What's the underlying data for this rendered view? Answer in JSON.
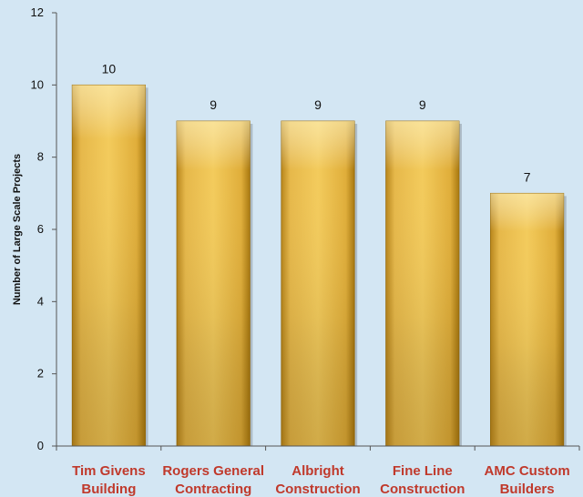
{
  "chart_data": {
    "type": "bar",
    "categories": [
      [
        "Tim Givens",
        "Building"
      ],
      [
        "Rogers General",
        "Contracting"
      ],
      [
        "Albright",
        "Construction"
      ],
      [
        "Fine Line",
        "Construction"
      ],
      [
        "AMC Custom",
        "Builders"
      ]
    ],
    "values": [
      10,
      9,
      9,
      9,
      7
    ],
    "data_labels": [
      "10",
      "9",
      "9",
      "9",
      "7"
    ],
    "ylabel": "Number of Large Scale Projects",
    "xlabel": "",
    "title": "",
    "ylim": [
      0,
      12
    ],
    "yticks": [
      0,
      2,
      4,
      6,
      8,
      10,
      12
    ],
    "grid": false,
    "legend": "none",
    "colors": {
      "background": "#d3e6f3",
      "bar_light": "#f8d266",
      "bar_mid": "#e0ae3a",
      "bar_dark": "#b8861c",
      "category_text": "#c0392b",
      "axis": "#555555"
    }
  }
}
